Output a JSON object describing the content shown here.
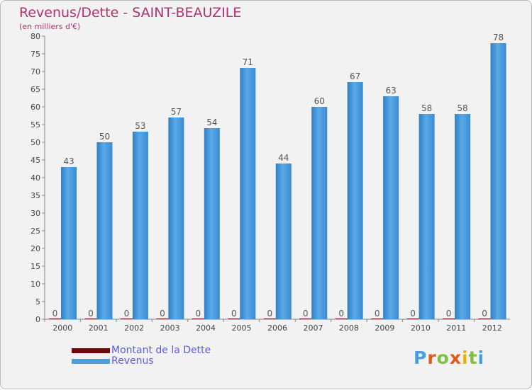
{
  "chart_data": {
    "type": "bar",
    "title": "Revenus/Dette - SAINT-BEAUZILE",
    "subtitle": "(en milliers d'€)",
    "categories": [
      "2000",
      "2001",
      "2002",
      "2003",
      "2004",
      "2005",
      "2006",
      "2007",
      "2008",
      "2009",
      "2010",
      "2011",
      "2012"
    ],
    "series": [
      {
        "name": "Montant de la Dette",
        "color": "#6b0a0a",
        "values": [
          0,
          0,
          0,
          0,
          0,
          0,
          0,
          0,
          0,
          0,
          0,
          0,
          0
        ]
      },
      {
        "name": "Revenus",
        "color": "#4a9ee0",
        "values": [
          43,
          50,
          53,
          57,
          54,
          71,
          44,
          60,
          67,
          63,
          58,
          58,
          78
        ]
      }
    ],
    "ylim": [
      0,
      80
    ],
    "ytick_step": 5,
    "grid": false,
    "legend_position": "bottom-left"
  },
  "legend": {
    "debt_label": "Montant de la Dette",
    "revenue_label": "Revenus"
  },
  "logo": {
    "letters": [
      "P",
      "r",
      "o",
      "x",
      "i",
      "t",
      "i"
    ],
    "colors": [
      "#4a9ee0",
      "#e05a1c",
      "#7fbf3f",
      "#e05a1c",
      "#e8b400",
      "#7fbf3f",
      "#4a9ee0"
    ]
  }
}
